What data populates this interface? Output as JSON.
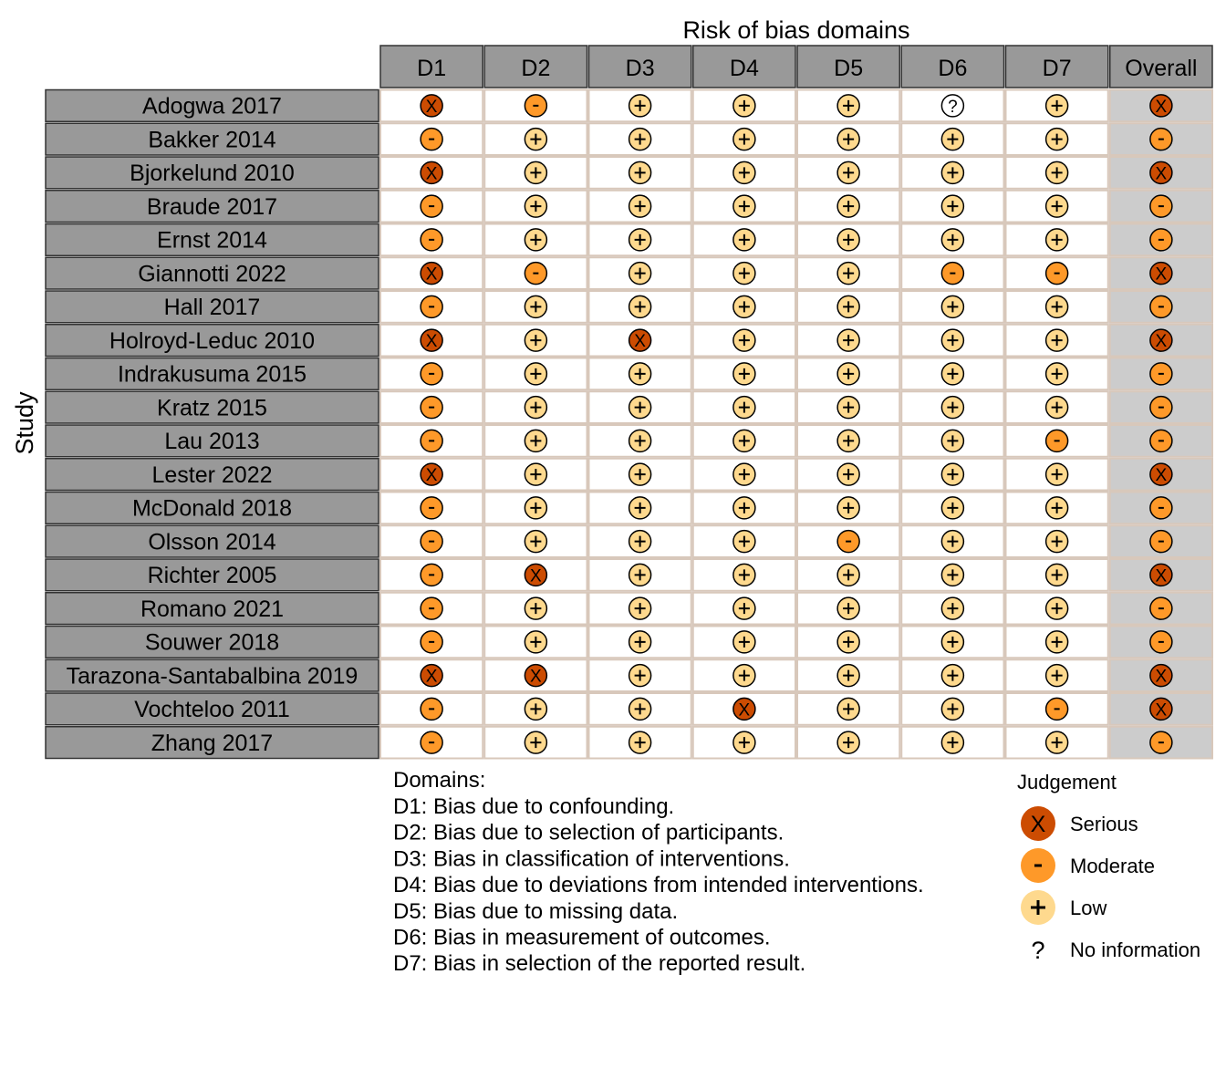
{
  "chart_data": {
    "type": "table",
    "title": "Risk of bias domains",
    "ylabel": "Study",
    "columns": [
      "D1",
      "D2",
      "D3",
      "D4",
      "D5",
      "D6",
      "D7",
      "Overall"
    ],
    "studies": [
      "Adogwa 2017",
      "Bakker 2014",
      "Bjorkelund 2010",
      "Braude 2017",
      "Ernst 2014",
      "Giannotti 2022",
      "Hall 2017",
      "Holroyd-Leduc 2010",
      "Indrakusuma 2015",
      "Kratz 2015",
      "Lau 2013",
      "Lester 2022",
      "McDonald 2018",
      "Olsson 2014",
      "Richter 2005",
      "Romano 2021",
      "Souwer 2018",
      "Tarazona-Santabalbina 2019",
      "Vochteloo 2011",
      "Zhang 2017"
    ],
    "judgements": [
      [
        "Serious",
        "Moderate",
        "Low",
        "Low",
        "Low",
        "No information",
        "Low",
        "Serious"
      ],
      [
        "Moderate",
        "Low",
        "Low",
        "Low",
        "Low",
        "Low",
        "Low",
        "Moderate"
      ],
      [
        "Serious",
        "Low",
        "Low",
        "Low",
        "Low",
        "Low",
        "Low",
        "Serious"
      ],
      [
        "Moderate",
        "Low",
        "Low",
        "Low",
        "Low",
        "Low",
        "Low",
        "Moderate"
      ],
      [
        "Moderate",
        "Low",
        "Low",
        "Low",
        "Low",
        "Low",
        "Low",
        "Moderate"
      ],
      [
        "Serious",
        "Moderate",
        "Low",
        "Low",
        "Low",
        "Moderate",
        "Moderate",
        "Serious"
      ],
      [
        "Moderate",
        "Low",
        "Low",
        "Low",
        "Low",
        "Low",
        "Low",
        "Moderate"
      ],
      [
        "Serious",
        "Low",
        "Serious",
        "Low",
        "Low",
        "Low",
        "Low",
        "Serious"
      ],
      [
        "Moderate",
        "Low",
        "Low",
        "Low",
        "Low",
        "Low",
        "Low",
        "Moderate"
      ],
      [
        "Moderate",
        "Low",
        "Low",
        "Low",
        "Low",
        "Low",
        "Low",
        "Moderate"
      ],
      [
        "Moderate",
        "Low",
        "Low",
        "Low",
        "Low",
        "Low",
        "Moderate",
        "Moderate"
      ],
      [
        "Serious",
        "Low",
        "Low",
        "Low",
        "Low",
        "Low",
        "Low",
        "Serious"
      ],
      [
        "Moderate",
        "Low",
        "Low",
        "Low",
        "Low",
        "Low",
        "Low",
        "Moderate"
      ],
      [
        "Moderate",
        "Low",
        "Low",
        "Low",
        "Moderate",
        "Low",
        "Low",
        "Moderate"
      ],
      [
        "Moderate",
        "Serious",
        "Low",
        "Low",
        "Low",
        "Low",
        "Low",
        "Serious"
      ],
      [
        "Moderate",
        "Low",
        "Low",
        "Low",
        "Low",
        "Low",
        "Low",
        "Moderate"
      ],
      [
        "Moderate",
        "Low",
        "Low",
        "Low",
        "Low",
        "Low",
        "Low",
        "Moderate"
      ],
      [
        "Serious",
        "Serious",
        "Low",
        "Low",
        "Low",
        "Low",
        "Low",
        "Serious"
      ],
      [
        "Moderate",
        "Low",
        "Low",
        "Serious",
        "Low",
        "Low",
        "Moderate",
        "Serious"
      ],
      [
        "Moderate",
        "Low",
        "Low",
        "Low",
        "Low",
        "Low",
        "Low",
        "Moderate"
      ]
    ],
    "domains_heading": "Domains:",
    "domains": [
      "D1: Bias due to confounding.",
      "D2: Bias due to selection of participants.",
      "D3: Bias in classification of interventions.",
      "D4: Bias due to deviations from intended interventions.",
      "D5: Bias due to missing data.",
      "D6: Bias in measurement of outcomes.",
      "D7: Bias in selection of the reported result."
    ],
    "legend": {
      "title": "Judgement",
      "placement": "bottom-right",
      "items": [
        {
          "label": "Serious",
          "symbol": "X",
          "color": "#CC4C02"
        },
        {
          "label": "Moderate",
          "symbol": "-",
          "color": "#FE9929"
        },
        {
          "label": "Low",
          "symbol": "+",
          "color": "#FED98E"
        },
        {
          "label": "No information",
          "symbol": "?",
          "color": "#FFFFFF"
        }
      ]
    },
    "colors": {
      "header_fill": "#999999",
      "overall_column_fill": "#CCCCCC",
      "cell_border": "#D8C8BB",
      "Serious": "#CC4C02",
      "Moderate": "#FE9929",
      "Low": "#FED98E",
      "No information": "#FFFFFF"
    }
  }
}
